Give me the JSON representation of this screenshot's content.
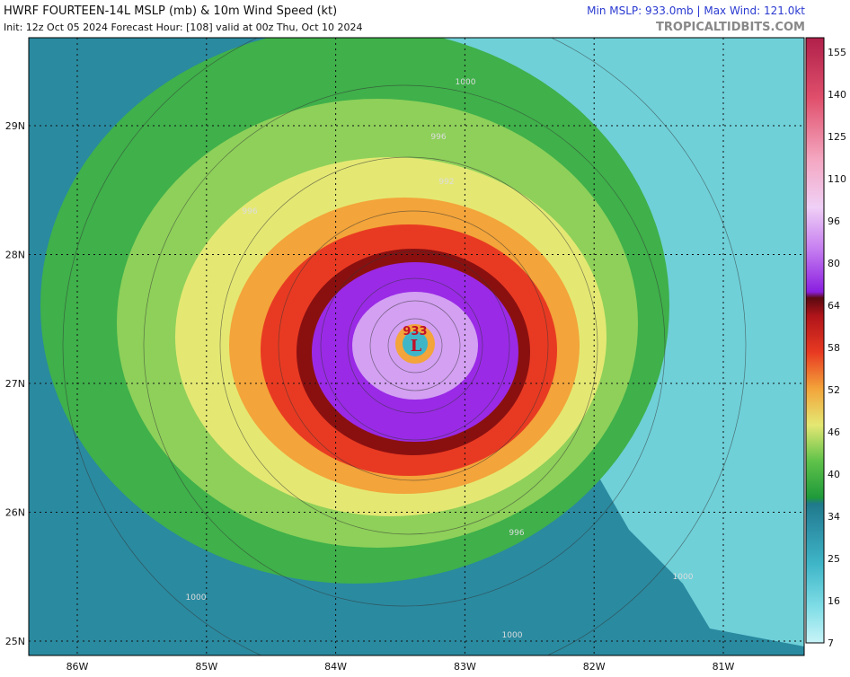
{
  "header": {
    "title": "HWRF FOURTEEN-14L MSLP (mb) & 10m Wind Speed (kt)",
    "subtitle": "Init: 12z Oct 05 2024   Forecast Hour: [108]   valid at 00z Thu, Oct 10 2024",
    "stats": "Min MSLP: 933.0mb | Max Wind: 121.0kt",
    "credit": "TROPICALTIDBITS.COM"
  },
  "map": {
    "lat_labels": [
      "29N",
      "28N",
      "27N",
      "26N",
      "25N"
    ],
    "lon_labels": [
      "86W",
      "85W",
      "84W",
      "83W",
      "82W",
      "81W"
    ],
    "center": {
      "pressure": "933",
      "symbol": "L"
    },
    "contour_labels": [
      "1000",
      "996",
      "992",
      "996",
      "996",
      "1000",
      "1000",
      "1000"
    ]
  },
  "colorbar": {
    "labels": [
      155,
      140,
      125,
      110,
      96,
      80,
      64,
      58,
      52,
      46,
      40,
      34,
      25,
      16,
      7
    ]
  }
}
